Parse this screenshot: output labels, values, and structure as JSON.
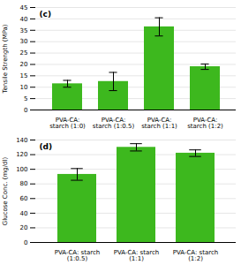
{
  "chart_data": [
    {
      "type": "bar",
      "title": "(c)",
      "categories": [
        "PVA-CA:\nstarch (1:0)",
        "PVA-CA:\nstarch (1:0.5)",
        "PVA-CA:\nstarch (1:1)",
        "PVA-CA:\nstarch (1:2)"
      ],
      "values": [
        11.5,
        12.5,
        36.5,
        19.0
      ],
      "errors": [
        1.5,
        4.0,
        4.0,
        1.2
      ],
      "ylabel": "Tensile Strength (MPa)",
      "ylim": [
        0,
        45
      ],
      "yticks": [
        0,
        5,
        10,
        15,
        20,
        25,
        30,
        35,
        40,
        45
      ],
      "color": "#3db81e",
      "grid": true
    },
    {
      "type": "bar",
      "title": "(d)",
      "categories": [
        "PVA-CA: starch\n(1:0.5)",
        "PVA-CA: starch\n(1:1)",
        "PVA-CA: starch\n(1:2)"
      ],
      "values": [
        93.0,
        130.0,
        122.0
      ],
      "errors": [
        8.0,
        5.0,
        4.5
      ],
      "ylabel": "Glucose Conc. (mg/dl)",
      "ylim": [
        0,
        140
      ],
      "yticks": [
        0,
        20,
        40,
        60,
        80,
        100,
        120,
        140
      ],
      "color": "#3db81e",
      "grid": true
    }
  ]
}
